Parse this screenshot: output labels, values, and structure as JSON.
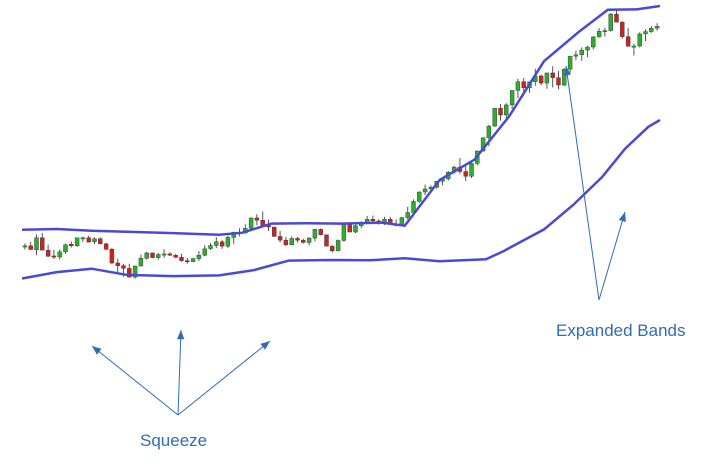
{
  "chart_data": {
    "type": "candlestick",
    "title": "",
    "xlabel": "",
    "ylabel": "",
    "x_count": 110,
    "ylim": [
      0,
      100
    ],
    "grid": false,
    "legend": false,
    "colors": {
      "up": "#2eac2e",
      "down": "#cc2222",
      "wick": "#555555",
      "band": "#4a49d6",
      "annotation": "#2f6db5"
    },
    "candles_ohlc": [
      [
        38.1,
        39.1,
        37.3,
        38.4
      ],
      [
        38.4,
        39.6,
        37.4,
        37.3
      ],
      [
        37.2,
        41.8,
        35.6,
        40.8
      ],
      [
        40.8,
        42.2,
        37.3,
        37.1
      ],
      [
        37.1,
        38.8,
        35.1,
        35.3
      ],
      [
        35.4,
        37.2,
        34.5,
        35.1
      ],
      [
        35.1,
        37.3,
        34.3,
        36.6
      ],
      [
        36.6,
        39.1,
        36.0,
        38.7
      ],
      [
        38.9,
        39.7,
        37.9,
        38.4
      ],
      [
        38.4,
        40.8,
        38.1,
        40.8
      ],
      [
        40.8,
        41.1,
        39.5,
        40.8
      ],
      [
        40.8,
        41.4,
        39.5,
        39.5
      ],
      [
        39.6,
        40.9,
        38.9,
        40.5
      ],
      [
        40.5,
        40.9,
        38.8,
        39.0
      ],
      [
        39.0,
        39.3,
        37.1,
        37.4
      ],
      [
        37.4,
        37.8,
        33.0,
        33.3
      ],
      [
        33.3,
        34.6,
        30.5,
        32.5
      ],
      [
        32.5,
        33.0,
        29.2,
        31.7
      ],
      [
        31.7,
        33.1,
        29.0,
        29.1
      ],
      [
        29.1,
        32.5,
        28.7,
        32.4
      ],
      [
        32.4,
        35.8,
        32.3,
        34.7
      ],
      [
        34.7,
        36.6,
        34.3,
        36.3
      ],
      [
        36.3,
        36.4,
        34.7,
        34.9
      ],
      [
        34.9,
        36.3,
        34.3,
        35.8
      ],
      [
        35.8,
        37.4,
        34.8,
        36.0
      ],
      [
        36.0,
        36.5,
        35.4,
        35.6
      ],
      [
        35.6,
        36.0,
        34.8,
        35.0
      ],
      [
        35.0,
        36.0,
        33.7,
        34.0
      ],
      [
        34.0,
        34.8,
        33.1,
        33.7
      ],
      [
        33.7,
        34.8,
        33.7,
        34.6
      ],
      [
        34.6,
        36.9,
        33.9,
        35.6
      ],
      [
        35.6,
        38.6,
        35.3,
        37.5
      ],
      [
        37.6,
        39.2,
        37.2,
        38.5
      ],
      [
        38.5,
        41.0,
        37.7,
        39.6
      ],
      [
        39.6,
        40.1,
        37.5,
        38.3
      ],
      [
        38.3,
        41.4,
        37.8,
        40.9
      ],
      [
        40.9,
        42.6,
        39.0,
        42.4
      ],
      [
        42.4,
        43.6,
        41.2,
        42.2
      ],
      [
        42.2,
        44.8,
        42.1,
        43.6
      ],
      [
        43.6,
        46.6,
        43.2,
        46.7
      ],
      [
        46.7,
        47.8,
        44.5,
        46.0
      ],
      [
        46.0,
        48.6,
        44.6,
        44.5
      ],
      [
        44.5,
        46.2,
        42.8,
        44.0
      ],
      [
        44.0,
        44.0,
        41.1,
        41.2
      ],
      [
        41.2,
        42.8,
        39.4,
        40.1
      ],
      [
        40.1,
        41.0,
        38.3,
        38.7
      ],
      [
        38.7,
        41.2,
        38.6,
        40.6
      ],
      [
        40.6,
        41.0,
        39.4,
        40.1
      ],
      [
        40.1,
        40.5,
        39.1,
        39.4
      ],
      [
        39.4,
        41.0,
        38.5,
        40.7
      ],
      [
        40.7,
        43.5,
        39.7,
        43.3
      ],
      [
        43.3,
        43.6,
        41.5,
        41.7
      ],
      [
        41.7,
        41.6,
        38.3,
        38.3
      ],
      [
        38.3,
        38.6,
        36.4,
        36.9
      ],
      [
        36.9,
        40.3,
        36.8,
        40.0
      ],
      [
        40.0,
        45.2,
        39.6,
        44.7
      ],
      [
        44.7,
        44.9,
        42.5,
        42.5
      ],
      [
        42.5,
        44.7,
        42.2,
        44.4
      ],
      [
        44.4,
        45.7,
        43.7,
        45.3
      ],
      [
        45.3,
        47.3,
        45.1,
        46.3
      ],
      [
        46.3,
        47.4,
        44.8,
        45.8
      ],
      [
        45.8,
        46.3,
        44.7,
        45.5
      ],
      [
        45.5,
        47.0,
        44.6,
        46.3
      ],
      [
        46.3,
        47.0,
        44.8,
        44.8
      ],
      [
        44.8,
        46.3,
        44.2,
        44.5
      ],
      [
        44.5,
        47.0,
        44.3,
        46.8
      ],
      [
        46.8,
        50.0,
        46.2,
        48.3
      ],
      [
        48.3,
        52.2,
        48.2,
        51.6
      ],
      [
        51.6,
        54.6,
        51.2,
        54.4
      ],
      [
        54.4,
        56.6,
        53.5,
        55.3
      ],
      [
        55.3,
        56.4,
        54.1,
        55.8
      ],
      [
        55.8,
        57.2,
        55.4,
        57.6
      ],
      [
        57.6,
        58.8,
        56.4,
        58.3
      ],
      [
        58.3,
        60.7,
        57.8,
        60.3
      ],
      [
        60.3,
        62.2,
        59.8,
        61.8
      ],
      [
        61.8,
        64.5,
        59.8,
        60.5
      ],
      [
        60.5,
        62.5,
        57.7,
        59.1
      ],
      [
        59.1,
        63.1,
        58.6,
        62.9
      ],
      [
        62.9,
        66.7,
        62.3,
        66.6
      ],
      [
        66.6,
        70.7,
        66.4,
        70.5
      ],
      [
        70.5,
        74.4,
        68.0,
        74.0
      ],
      [
        74.0,
        79.0,
        73.8,
        79.3
      ],
      [
        79.3,
        80.6,
        75.6,
        77.3
      ],
      [
        77.3,
        80.8,
        76.3,
        80.3
      ],
      [
        80.3,
        84.6,
        79.1,
        84.6
      ],
      [
        84.6,
        88.1,
        82.3,
        87.2
      ],
      [
        87.2,
        88.3,
        84.3,
        85.4
      ],
      [
        85.4,
        87.2,
        83.9,
        87.2
      ],
      [
        87.2,
        91.0,
        86.0,
        88.9
      ],
      [
        88.9,
        89.3,
        86.2,
        86.8
      ],
      [
        86.8,
        89.4,
        85.1,
        89.8
      ],
      [
        89.8,
        91.8,
        85.5,
        88.4
      ],
      [
        88.4,
        90.4,
        85.0,
        86.2
      ],
      [
        86.2,
        91.2,
        85.9,
        90.9
      ],
      [
        90.9,
        94.3,
        89.8,
        94.8
      ],
      [
        94.8,
        96.4,
        93.6,
        95.2
      ],
      [
        95.2,
        97.4,
        93.4,
        96.6
      ],
      [
        96.6,
        97.9,
        94.5,
        97.5
      ],
      [
        97.5,
        100.8,
        96.8,
        100.5
      ],
      [
        100.5,
        103.1,
        100.3,
        102.2
      ],
      [
        102.2,
        103.2,
        100.6,
        102.4
      ],
      [
        102.4,
        107.6,
        102.1,
        107.3
      ],
      [
        107.3,
        108.8,
        106.4,
        104.9
      ],
      [
        104.9,
        105.2,
        100.0,
        100.6
      ],
      [
        100.6,
        103.2,
        100.6,
        97.7
      ],
      [
        97.7,
        98.5,
        95.0,
        97.8
      ],
      [
        97.8,
        101.9,
        97.4,
        101.4
      ],
      [
        101.4,
        102.8,
        99.3,
        102.1
      ],
      [
        102.1,
        103.7,
        101.7,
        103.1
      ],
      [
        103.1,
        104.6,
        102.4,
        103.7
      ]
    ],
    "upper_band": [
      [
        0,
        43.2
      ],
      [
        6,
        43.4
      ],
      [
        12,
        42.9
      ],
      [
        18,
        42.6
      ],
      [
        26,
        42.2
      ],
      [
        34,
        41.7
      ],
      [
        38,
        42.3
      ],
      [
        43,
        45.0
      ],
      [
        49,
        45.1
      ],
      [
        55,
        45.0
      ],
      [
        62,
        45.3
      ],
      [
        66,
        44.4
      ],
      [
        72,
        58.0
      ],
      [
        78,
        64.0
      ],
      [
        84,
        76.9
      ],
      [
        90,
        93.3
      ],
      [
        96,
        102.0
      ],
      [
        101,
        108.6
      ],
      [
        106,
        108.7
      ],
      [
        110,
        109.7
      ]
    ],
    "lower_band": [
      [
        0,
        28.7
      ],
      [
        6,
        30.6
      ],
      [
        12,
        31.6
      ],
      [
        18,
        29.8
      ],
      [
        26,
        29.4
      ],
      [
        34,
        29.6
      ],
      [
        40,
        31.2
      ],
      [
        46,
        34.0
      ],
      [
        53,
        34.2
      ],
      [
        60,
        34.1
      ],
      [
        66,
        34.7
      ],
      [
        72,
        33.8
      ],
      [
        80,
        34.4
      ],
      [
        83,
        36.8
      ],
      [
        90,
        43.3
      ],
      [
        95,
        50.5
      ],
      [
        100,
        58.8
      ],
      [
        104,
        67.3
      ],
      [
        108,
        73.8
      ],
      [
        110,
        75.8
      ]
    ],
    "annotations": [
      {
        "text": "Squeeze",
        "arrows": 3
      },
      {
        "text": "Expanded Bands",
        "arrows": 2
      }
    ]
  }
}
